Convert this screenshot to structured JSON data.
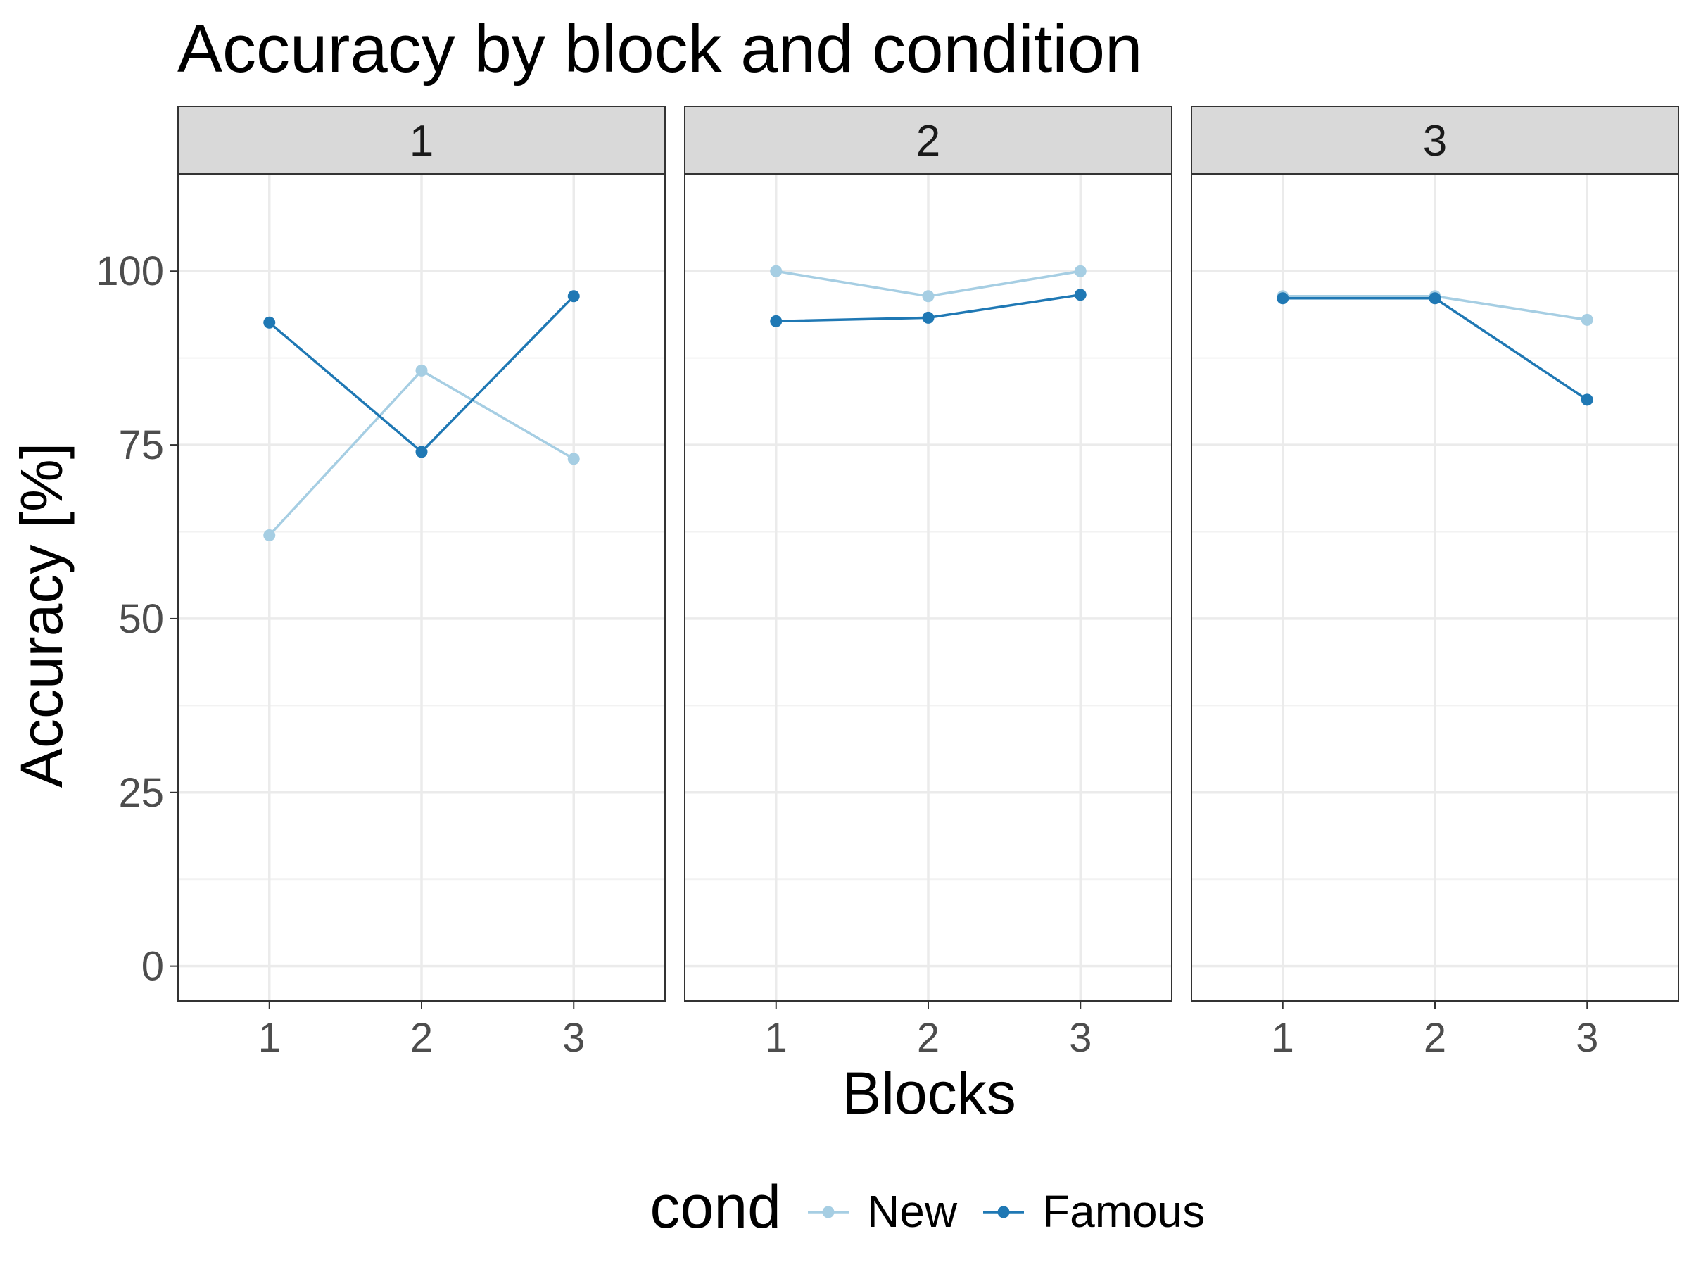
{
  "chart_data": {
    "type": "line",
    "title": "Accuracy by block and condition",
    "xlabel": "Blocks",
    "ylabel": "Accuracy [%]",
    "ylim": [
      -5,
      114
    ],
    "yticks": [
      0,
      25,
      50,
      75,
      100
    ],
    "ytick_labels": [
      "0",
      "25",
      "50",
      "75",
      "100"
    ],
    "x_categories": [
      "1",
      "2",
      "3"
    ],
    "grid": true,
    "legend": {
      "title": "cond",
      "placement": "bottom",
      "entries": [
        "New",
        "Famous"
      ]
    },
    "facets": [
      {
        "label": "1",
        "series": [
          {
            "name": "New",
            "color": "#a6cee3",
            "values": [
              62,
              85.7,
              73
            ]
          },
          {
            "name": "Famous",
            "color": "#1f78b4",
            "values": [
              92.6,
              74,
              96.4
            ]
          }
        ]
      },
      {
        "label": "2",
        "series": [
          {
            "name": "New",
            "color": "#a6cee3",
            "values": [
              100,
              96.4,
              100
            ]
          },
          {
            "name": "Famous",
            "color": "#1f78b4",
            "values": [
              92.8,
              93.3,
              96.6
            ]
          }
        ]
      },
      {
        "label": "3",
        "series": [
          {
            "name": "New",
            "color": "#a6cee3",
            "values": [
              96.4,
              96.4,
              93
            ]
          },
          {
            "name": "Famous",
            "color": "#1f78b4",
            "values": [
              96.1,
              96.1,
              81.5
            ]
          }
        ]
      }
    ]
  }
}
